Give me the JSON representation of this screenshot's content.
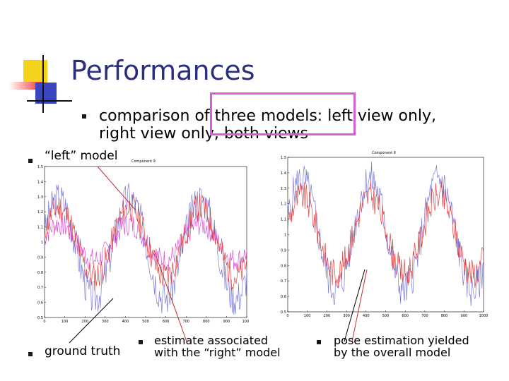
{
  "slide": {
    "title": "Performances",
    "top_bullet": {
      "line1": "comparison of three models: left view only,",
      "line2": "right view only, both views"
    },
    "left_bullet": "“left” model",
    "ground_truth_bullet": "ground truth",
    "estimate_bullet": {
      "line1": "estimate associated",
      "line2": "with the “right” model"
    },
    "pose_bullet": {
      "line1": "pose estimation yielded",
      "line2": "by the overall model"
    },
    "colors": {
      "title": "#2a2f7a",
      "highlight_box": "#d85bd8",
      "deco_yellow": "#f5d21b",
      "deco_red": "#ea2b2b",
      "deco_blue": "#3a47c0",
      "ground_truth_series": "#7b7bd8",
      "estimate_series": "#e24040",
      "left_model_series": "#d84fd8",
      "annotation_line": "#c8282e"
    }
  },
  "chart_data": [
    {
      "type": "line",
      "title": "Component 9",
      "x_ticks": [
        "0",
        "100",
        "200",
        "300",
        "400",
        "500",
        "600",
        "700",
        "800",
        "900",
        "1000"
      ],
      "y_ticks": [
        "0.5",
        "0.6",
        "0.7",
        "0.8",
        "0.9",
        "1",
        "1.1",
        "1.2",
        "1.3",
        "1.4",
        "1.5"
      ],
      "xlim": [
        0,
        1000
      ],
      "ylim": [
        0.5,
        1.5
      ],
      "series": [
        {
          "period": 350,
          "phase": 0.3,
          "center": 0.96,
          "amp": 0.33,
          "noise": 0.12,
          "seed": 3
        },
        {
          "period": 350,
          "phase": 0.3,
          "center": 1.0,
          "amp": 0.12,
          "noise": 0.08,
          "seed": 7
        },
        {
          "period": 350,
          "phase": 0.3,
          "center": 1.0,
          "amp": 0.23,
          "noise": 0.1,
          "seed": 11
        }
      ]
    },
    {
      "type": "line",
      "title": "Component 9",
      "x_ticks": [
        "0",
        "100",
        "200",
        "300",
        "400",
        "500",
        "600",
        "700",
        "800",
        "900",
        "1000"
      ],
      "y_ticks": [
        "0.5",
        "0.6",
        "0.7",
        "0.8",
        "0.9",
        "1",
        "1.1",
        "1.2",
        "1.3",
        "1.4",
        "1.5"
      ],
      "xlim": [
        0,
        1000
      ],
      "ylim": [
        0.5,
        1.5
      ],
      "series": [
        {
          "period": 350,
          "phase": 0.3,
          "center": 1.0,
          "amp": 0.36,
          "noise": 0.12,
          "seed": 5
        },
        {
          "period": 350,
          "phase": 0.3,
          "center": 1.0,
          "amp": 0.25,
          "noise": 0.1,
          "seed": 9
        }
      ]
    }
  ]
}
